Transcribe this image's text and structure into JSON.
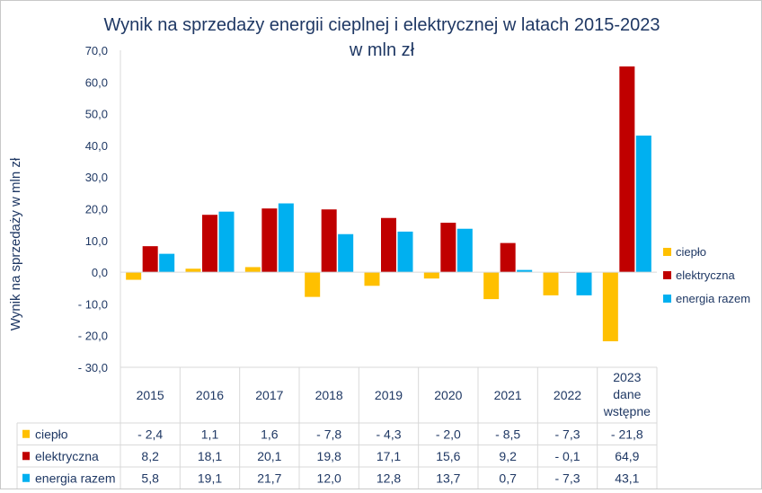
{
  "chart_data": {
    "type": "bar",
    "title_line1": "Wynik na sprzedaży energii cieplnej i elektrycznej w latach 2015-2023",
    "title_line2": "w mln zł",
    "ylabel": "Wynik na sprzedaży w mln zł",
    "ylim": [
      -30,
      70
    ],
    "yticks": [
      70,
      60,
      50,
      40,
      30,
      20,
      10,
      0,
      -10,
      -20,
      -30
    ],
    "ytick_labels": [
      "70,0",
      "60,0",
      "50,0",
      "40,0",
      "30,0",
      "20,0",
      "10,0",
      "0,0",
      "- 10,0",
      "- 20,0",
      "- 30,0"
    ],
    "categories": [
      [
        "2015"
      ],
      [
        "2016"
      ],
      [
        "2017"
      ],
      [
        "2018"
      ],
      [
        "2019"
      ],
      [
        "2020"
      ],
      [
        "2021"
      ],
      [
        "2022"
      ],
      [
        "2023",
        "dane",
        "wstępne"
      ]
    ],
    "series": [
      {
        "name": "ciepło",
        "color": "#ffc000",
        "values": [
          -2.4,
          1.1,
          1.6,
          -7.8,
          -4.3,
          -2.0,
          -8.5,
          -7.3,
          -21.8
        ],
        "labels": [
          "- 2,4",
          "1,1",
          "1,6",
          "- 7,8",
          "- 4,3",
          "- 2,0",
          "- 8,5",
          "- 7,3",
          "- 21,8"
        ]
      },
      {
        "name": "elektryczna",
        "color": "#c00000",
        "values": [
          8.2,
          18.1,
          20.1,
          19.8,
          17.1,
          15.6,
          9.2,
          -0.1,
          64.9
        ],
        "labels": [
          "8,2",
          "18,1",
          "20,1",
          "19,8",
          "17,1",
          "15,6",
          "9,2",
          "- 0,1",
          "64,9"
        ]
      },
      {
        "name": "energia razem",
        "color": "#00b0f0",
        "values": [
          5.8,
          19.1,
          21.7,
          12.0,
          12.8,
          13.7,
          0.7,
          -7.3,
          43.1
        ],
        "labels": [
          "5,8",
          "19,1",
          "21,7",
          "12,0",
          "12,8",
          "13,7",
          "0,7",
          "- 7,3",
          "43,1"
        ]
      }
    ],
    "legend_position": "right",
    "grid": false
  }
}
